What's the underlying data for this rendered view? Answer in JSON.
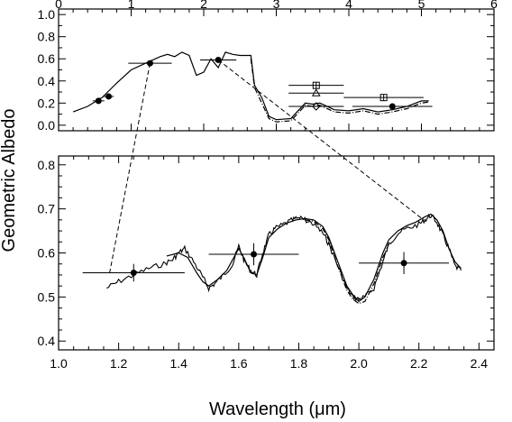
{
  "chart_data": [
    {
      "panel": "top",
      "type": "line",
      "xlabel": "",
      "ylabel": "",
      "xlim": [
        0,
        6
      ],
      "ylim": [
        -0.05,
        1.05
      ],
      "x_ticks": [
        0,
        1,
        2,
        3,
        4,
        5,
        6
      ],
      "y_ticks": [
        0.0,
        0.2,
        0.4,
        0.6,
        0.8,
        1.0
      ],
      "y_tick_labels": [
        "0.0",
        "0.2",
        "0.4",
        "0.6",
        "0.8",
        "1.0"
      ],
      "series": [
        {
          "style": "solid",
          "x": [
            0.2,
            0.4,
            0.6,
            0.8,
            1.0,
            1.2,
            1.4,
            1.5,
            1.6,
            1.7,
            1.8,
            1.9,
            2.0,
            2.1,
            2.2,
            2.3,
            2.4,
            2.5,
            2.6,
            2.65,
            2.7,
            2.8,
            2.9,
            3.0,
            3.2,
            3.4,
            3.5,
            3.6,
            3.8,
            4.0,
            4.2,
            4.4,
            4.6,
            4.8,
            5.0,
            5.1
          ],
          "y": [
            0.12,
            0.17,
            0.25,
            0.38,
            0.5,
            0.56,
            0.62,
            0.64,
            0.62,
            0.66,
            0.63,
            0.45,
            0.48,
            0.6,
            0.52,
            0.66,
            0.64,
            0.63,
            0.63,
            0.63,
            0.36,
            0.25,
            0.08,
            0.05,
            0.06,
            0.2,
            0.19,
            0.2,
            0.14,
            0.13,
            0.15,
            0.12,
            0.14,
            0.17,
            0.22,
            0.22
          ]
        },
        {
          "style": "dash-dot",
          "x": [
            2.65,
            2.7,
            2.8,
            2.9,
            3.0,
            3.2,
            3.4,
            3.5,
            3.6,
            3.8,
            4.0,
            4.2,
            4.4,
            4.6,
            4.8,
            5.0,
            5.1
          ],
          "y": [
            0.6,
            0.34,
            0.2,
            0.06,
            0.03,
            0.04,
            0.18,
            0.17,
            0.18,
            0.12,
            0.11,
            0.13,
            0.1,
            0.12,
            0.15,
            0.2,
            0.21
          ]
        }
      ],
      "error_bars": [
        {
          "x": 0.55,
          "y": 0.22,
          "xerr": 0.08
        },
        {
          "x": 0.69,
          "y": 0.26,
          "xerr": 0.07
        },
        {
          "x": 1.26,
          "y": 0.56,
          "xerr": 0.3
        },
        {
          "x": 2.2,
          "y": 0.59,
          "xerr": 0.25
        },
        {
          "x": 4.6,
          "y": 0.17,
          "xerr": 0.55
        }
      ],
      "markers": [
        {
          "shape": "square",
          "x": 3.55,
          "y": 0.36,
          "xerr": 0.38
        },
        {
          "shape": "triangle",
          "x": 3.55,
          "y": 0.29,
          "xerr": 0.38
        },
        {
          "shape": "diamond",
          "x": 3.55,
          "y": 0.17,
          "xerr": 0.38
        },
        {
          "shape": "square",
          "x": 4.48,
          "y": 0.25,
          "xerr": 0.55
        }
      ]
    },
    {
      "panel": "bottom",
      "type": "line",
      "xlabel": "Wavelength (μm)",
      "ylabel": "Geometric Albedo",
      "xlim": [
        1.0,
        2.45
      ],
      "ylim": [
        0.38,
        0.82
      ],
      "x_ticks": [
        1.0,
        1.2,
        1.4,
        1.6,
        1.8,
        2.0,
        2.2,
        2.4
      ],
      "x_tick_labels": [
        "1.0",
        "1.2",
        "1.4",
        "1.6",
        "1.8",
        "2.0",
        "2.2",
        "2.4"
      ],
      "y_ticks": [
        0.4,
        0.5,
        0.6,
        0.7,
        0.8
      ],
      "y_tick_labels": [
        "0.4",
        "0.5",
        "0.6",
        "0.7",
        "0.8"
      ],
      "series": [
        {
          "style": "noisy",
          "x": [
            1.16,
            1.2,
            1.25,
            1.3,
            1.35,
            1.38,
            1.4,
            1.42,
            1.45,
            1.48,
            1.5,
            1.52,
            1.55,
            1.58,
            1.6,
            1.62,
            1.64,
            1.66,
            1.68,
            1.7,
            1.72,
            1.75,
            1.78,
            1.8
          ],
          "y": [
            0.52,
            0.535,
            0.55,
            0.565,
            0.575,
            0.585,
            0.6,
            0.61,
            0.58,
            0.545,
            0.52,
            0.53,
            0.55,
            0.575,
            0.615,
            0.58,
            0.56,
            0.55,
            0.6,
            0.64,
            0.655,
            0.665,
            0.675,
            0.68
          ]
        },
        {
          "style": "noisy",
          "x": [
            1.8,
            1.82,
            1.85,
            1.88,
            1.9,
            1.93,
            1.96,
            1.98,
            2.0,
            2.02,
            2.05,
            2.08,
            2.1,
            2.13,
            2.16,
            2.2,
            2.22,
            2.24,
            2.26,
            2.28,
            2.3,
            2.32,
            2.34
          ],
          "y": [
            0.68,
            0.675,
            0.665,
            0.645,
            0.62,
            0.57,
            0.52,
            0.5,
            0.495,
            0.5,
            0.52,
            0.58,
            0.62,
            0.645,
            0.655,
            0.665,
            0.675,
            0.685,
            0.67,
            0.64,
            0.61,
            0.57,
            0.56
          ]
        },
        {
          "style": "solid",
          "x": [
            1.36,
            1.4,
            1.43,
            1.46,
            1.48,
            1.5,
            1.53,
            1.56,
            1.58,
            1.6,
            1.62,
            1.64,
            1.66,
            1.68,
            1.7,
            1.73,
            1.76,
            1.79,
            1.82,
            1.85,
            1.88,
            1.9,
            1.93,
            1.96,
            1.98,
            2.0,
            2.02,
            2.05,
            2.08,
            2.1,
            2.13,
            2.16,
            2.19,
            2.22,
            2.24,
            2.26,
            2.28,
            2.3,
            2.32,
            2.34
          ],
          "y": [
            0.593,
            0.6,
            0.59,
            0.555,
            0.535,
            0.525,
            0.54,
            0.56,
            0.585,
            0.61,
            0.585,
            0.555,
            0.55,
            0.59,
            0.635,
            0.655,
            0.668,
            0.675,
            0.678,
            0.675,
            0.66,
            0.635,
            0.58,
            0.525,
            0.505,
            0.49,
            0.5,
            0.54,
            0.6,
            0.63,
            0.65,
            0.662,
            0.67,
            0.682,
            0.688,
            0.675,
            0.65,
            0.61,
            0.58,
            0.565
          ]
        },
        {
          "style": "dash-dot",
          "x": [
            1.82,
            1.85,
            1.88,
            1.9,
            1.93,
            1.96,
            1.98,
            2.0,
            2.02,
            2.05,
            2.08,
            2.1
          ],
          "y": [
            0.675,
            0.672,
            0.655,
            0.63,
            0.57,
            0.515,
            0.495,
            0.485,
            0.49,
            0.53,
            0.59,
            0.62
          ]
        }
      ],
      "error_bars": [
        {
          "x": 1.25,
          "y": 0.555,
          "xerr": 0.17,
          "yerr": 0.02
        },
        {
          "x": 1.65,
          "y": 0.597,
          "xerr": 0.15,
          "yerr": 0.025
        },
        {
          "x": 2.15,
          "y": 0.577,
          "xerr": 0.15,
          "yerr": 0.025
        }
      ]
    }
  ],
  "connectors": [
    {
      "from": {
        "panel": "top",
        "x": 1.26,
        "y": 0.56
      },
      "to": {
        "panel": "bottom",
        "x": 1.17,
        "y": 0.555
      }
    },
    {
      "from": {
        "panel": "top",
        "x": 2.2,
        "y": 0.59
      },
      "to": {
        "panel": "bottom",
        "x": 2.21,
        "y": 0.678
      }
    }
  ]
}
